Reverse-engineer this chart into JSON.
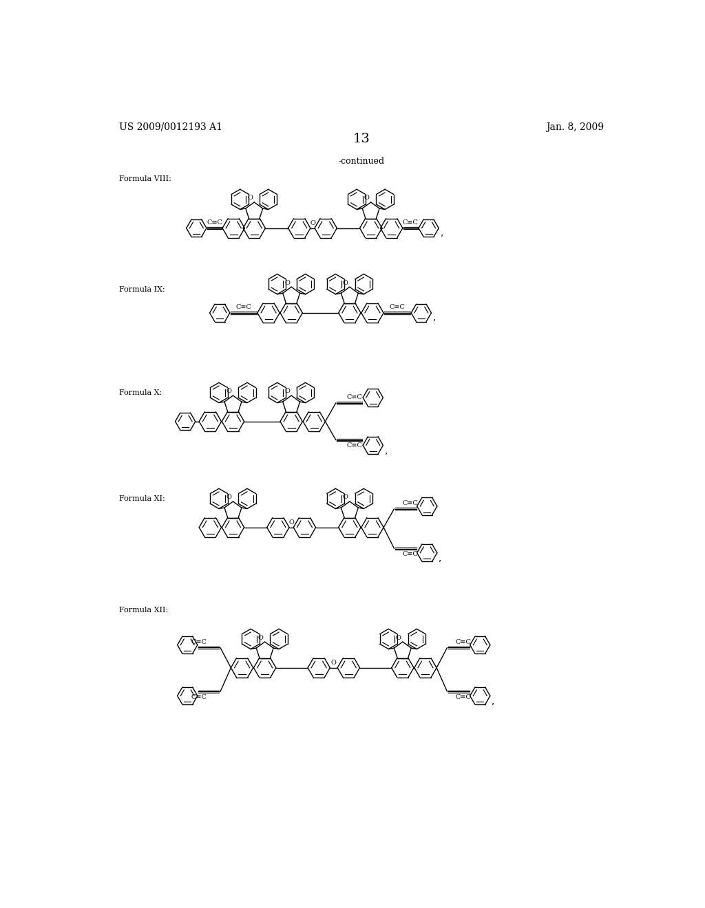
{
  "page_number": "13",
  "patent_number": "US 2009/0012193 A1",
  "patent_date": "Jan. 8, 2009",
  "continued_text": "-continued",
  "background_color": "#ffffff",
  "text_color": "#000000",
  "line_color": "#000000"
}
